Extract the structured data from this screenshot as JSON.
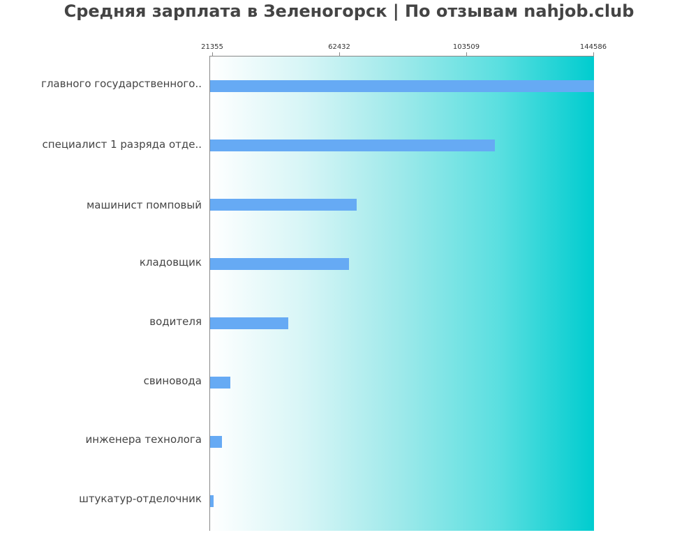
{
  "header": {
    "title": "Средняя зарплата в Зеленогорск | По отзывам nahjob.club"
  },
  "axis": {
    "ticks": [
      "21355",
      "62432",
      "103509",
      "144586"
    ]
  },
  "categories": [
    "главного государственного..",
    "специалист 1 разряда отде..",
    "машинист помповый",
    "кладовщик",
    "водителя",
    "свиновода",
    "инженера технолога",
    "штукатур-отделочник"
  ],
  "colors": {
    "bar": "#66aaf4",
    "gradient_start": "#ffffff",
    "gradient_end": "#00cccf",
    "title": "#444444"
  },
  "chart_data": {
    "type": "bar",
    "orientation": "horizontal",
    "title": "Средняя зарплата в Зеленогорск | По отзывам nahjob.club",
    "xlabel": "",
    "ylabel": "",
    "categories": [
      "главного государственного..",
      "специалист 1 разряда отде..",
      "машинист помповый",
      "кладовщик",
      "водителя",
      "свиновода",
      "инженера технолога",
      "штукатур-отделочник"
    ],
    "values": [
      144586,
      112300,
      67850,
      65370,
      45730,
      27000,
      24290,
      21580
    ],
    "xticks": [
      21355,
      62432,
      103509,
      144586
    ],
    "xlim": [
      20450,
      144586
    ],
    "tick_position": "top",
    "grid": false,
    "legend": null
  }
}
